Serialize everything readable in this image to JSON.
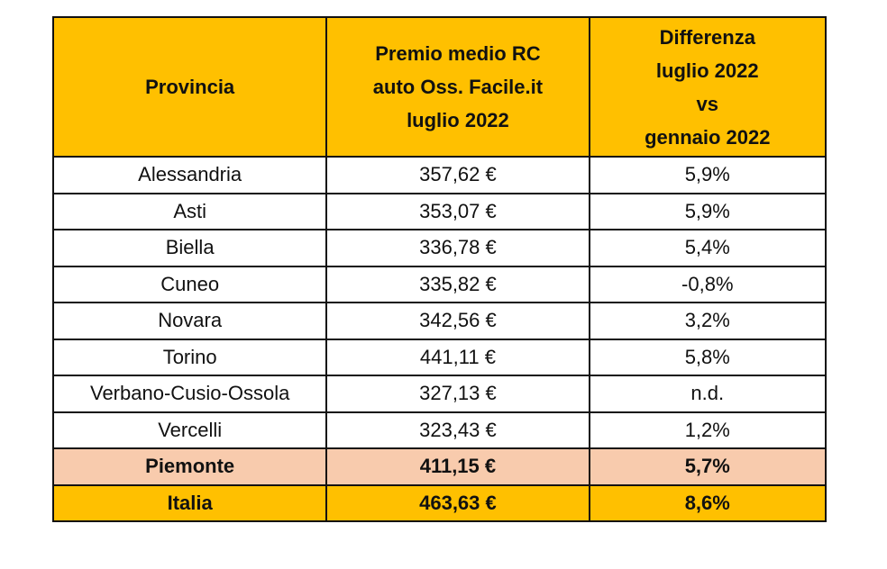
{
  "headers": {
    "provincia": "Provincia",
    "premio": [
      "Premio medio RC",
      "auto Oss. Facile.it",
      "luglio 2022"
    ],
    "differenza": [
      "Differenza",
      "luglio 2022",
      "vs",
      "gennaio 2022"
    ]
  },
  "rows": [
    {
      "provincia": "Alessandria",
      "premio": "357,62 €",
      "differenza": "5,9%"
    },
    {
      "provincia": "Asti",
      "premio": "353,07 €",
      "differenza": "5,9%"
    },
    {
      "provincia": "Biella",
      "premio": "336,78 €",
      "differenza": "5,4%"
    },
    {
      "provincia": "Cuneo",
      "premio": "335,82 €",
      "differenza": "-0,8%"
    },
    {
      "provincia": "Novara",
      "premio": "342,56 €",
      "differenza": "3,2%"
    },
    {
      "provincia": "Torino",
      "premio": "441,11 €",
      "differenza": "5,8%"
    },
    {
      "provincia": "Verbano-Cusio-Ossola",
      "premio": "327,13 €",
      "differenza": "n.d."
    },
    {
      "provincia": "Vercelli",
      "premio": "323,43 €",
      "differenza": "1,2%"
    }
  ],
  "region": {
    "provincia": "Piemonte",
    "premio": "411,15 €",
    "differenza": "5,7%"
  },
  "country": {
    "provincia": "Italia",
    "premio": "463,63 €",
    "differenza": "8,6%"
  },
  "colors": {
    "header": "#FFC000",
    "region": "#F8CBAD",
    "country": "#FFC000"
  }
}
